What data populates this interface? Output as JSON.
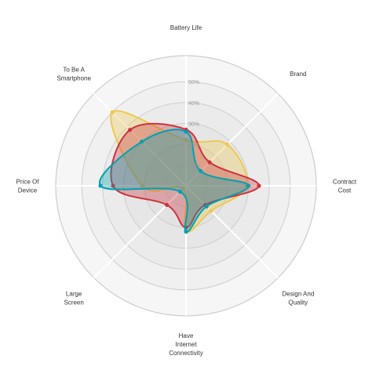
{
  "chart_data": {
    "type": "radar",
    "axes": [
      {
        "label": [
          "Battery Life"
        ]
      },
      {
        "label": [
          "Brand"
        ]
      },
      {
        "label": [
          "Contract",
          "Cost"
        ]
      },
      {
        "label": [
          "Design And",
          "Quality"
        ]
      },
      {
        "label": [
          "Have",
          "Internet",
          "Connectivity"
        ]
      },
      {
        "label": [
          "Large",
          "Screen"
        ]
      },
      {
        "label": [
          "Price Of",
          "Device"
        ]
      },
      {
        "label": [
          "To Be A",
          "Smartphone"
        ]
      }
    ],
    "tick_labels": [
      "10%",
      "20%",
      "30%",
      "40%",
      "50%"
    ],
    "r_max": 0.5,
    "grid_levels": 5,
    "series": [
      {
        "color": "#EDC951",
        "values": [
          0.22,
          0.28,
          0.29,
          0.17,
          0.22,
          0.02,
          0.21,
          0.5
        ]
      },
      {
        "color": "#CC333F",
        "values": [
          0.27,
          0.16,
          0.35,
          0.13,
          0.2,
          0.13,
          0.35,
          0.38
        ]
      },
      {
        "color": "#00A0B0",
        "values": [
          0.26,
          0.1,
          0.3,
          0.14,
          0.22,
          0.04,
          0.41,
          0.3
        ]
      }
    ]
  }
}
